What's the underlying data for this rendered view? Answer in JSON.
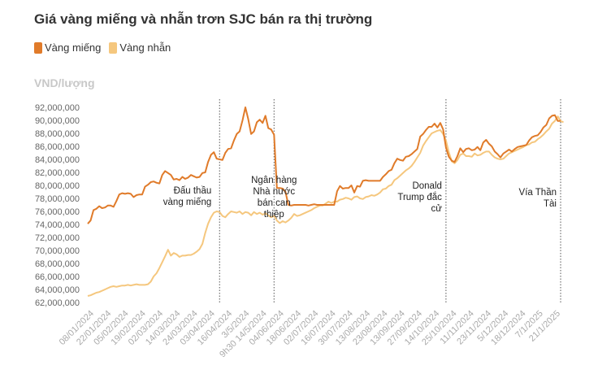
{
  "chart_data": {
    "type": "line",
    "title": "Giá vàng miếng và nhẫn trơn SJC bán ra thị trường",
    "ylabel": "VND/lượng",
    "xlabel": "",
    "ylim": [
      62000000,
      92000000
    ],
    "y_ticks": [
      "62,000,000",
      "64,000,000",
      "66,000,000",
      "68,000,000",
      "70,000,000",
      "72,000,000",
      "74,000,000",
      "76,000,000",
      "78,000,000",
      "80,000,000",
      "82,000,000",
      "84,000,000",
      "86,000,000",
      "88,000,000",
      "90,000,000",
      "92,000,000"
    ],
    "x_tick_labels": [
      "08/01/2024",
      "22/01/2024",
      "05/02/2024",
      "19/02/2024",
      "02/03/2024",
      "14/03/2024",
      "24/03/2024",
      "03/04/2024",
      "16/04/2024",
      "3/5/2024",
      "9h30 14/5/2024",
      "04/06/2024",
      "18/06/2024",
      "02/07/2024",
      "16/07/2024",
      "30/07/2024",
      "13/08/2024",
      "23/08/2024",
      "13/09/2024",
      "27/09/2024",
      "14/10/2024",
      "25/10/2024",
      "11/11/2024",
      "23/11/2024",
      "5/12/2024",
      "18/12/2024",
      "7/1/2025",
      "21/1/2025"
    ],
    "series": [
      {
        "name": "Vàng miếng",
        "color": "#e07b2a",
        "values": [
          74.1,
          74.6,
          76.2,
          76.4,
          76.8,
          76.5,
          76.6,
          76.9,
          76.9,
          76.7,
          77.6,
          78.6,
          78.8,
          78.7,
          78.8,
          78.7,
          78.2,
          78.5,
          78.6,
          78.6,
          79.8,
          80.1,
          80.5,
          80.6,
          80.4,
          80.3,
          81.6,
          82.2,
          81.9,
          81.6,
          80.9,
          81.0,
          80.8,
          81.3,
          81.0,
          81.2,
          81.6,
          81.4,
          81.2,
          81.3,
          81.9,
          82.0,
          83.6,
          84.7,
          85.1,
          84.1,
          84.0,
          83.9,
          85.0,
          85.6,
          85.7,
          86.9,
          87.9,
          88.3,
          90.0,
          92.0,
          90.2,
          87.9,
          88.3,
          89.7,
          90.1,
          89.6,
          90.7,
          88.8,
          88.6,
          87.8,
          79.6,
          79.6,
          79.5,
          79.0,
          77.0,
          76.9,
          77.0,
          77.0,
          77.0,
          77.0,
          77.0,
          76.9,
          77.0,
          77.1,
          77.0,
          77.0,
          77.0,
          77.0,
          77.0,
          77.0,
          77.0,
          79.1,
          79.9,
          79.5,
          79.6,
          79.6,
          80.0,
          78.9,
          79.9,
          79.8,
          80.7,
          80.8,
          80.7,
          80.7,
          80.7,
          80.7,
          80.7,
          81.3,
          81.7,
          82.2,
          82.4,
          83.4,
          84.1,
          83.9,
          83.8,
          84.4,
          84.5,
          84.8,
          85.2,
          85.6,
          87.5,
          87.9,
          88.5,
          89.0,
          89.0,
          89.5,
          88.9,
          89.6,
          88.6,
          85.8,
          84.4,
          83.8,
          83.6,
          84.5,
          85.7,
          85.1,
          85.6,
          85.7,
          85.4,
          85.5,
          85.9,
          85.4,
          86.6,
          87.0,
          86.4,
          86.0,
          85.2,
          84.8,
          84.3,
          84.9,
          85.2,
          85.5,
          85.2,
          85.6,
          85.9,
          86.0,
          86.1,
          86.2,
          86.9,
          87.4,
          87.6,
          87.7,
          88.2,
          88.9,
          89.3,
          90.3,
          90.7,
          90.8,
          89.9,
          89.9
        ]
      },
      {
        "name": "Vàng nhẫn",
        "color": "#f5c77e",
        "values": [
          63.0,
          63.1,
          63.3,
          63.5,
          63.6,
          63.8,
          64.0,
          64.2,
          64.4,
          64.5,
          64.4,
          64.5,
          64.6,
          64.6,
          64.7,
          64.6,
          64.7,
          64.8,
          64.7,
          64.7,
          64.7,
          64.8,
          65.2,
          66.0,
          66.5,
          67.3,
          68.2,
          69.1,
          70.1,
          69.2,
          69.6,
          69.4,
          69.0,
          69.2,
          69.2,
          69.3,
          69.3,
          69.5,
          69.8,
          70.2,
          71.0,
          72.7,
          74.1,
          75.1,
          75.8,
          76.0,
          75.9,
          75.3,
          75.1,
          75.6,
          76.0,
          75.9,
          75.8,
          76.0,
          75.6,
          75.9,
          75.8,
          75.4,
          75.9,
          75.6,
          75.8,
          75.5,
          75.7,
          75.4,
          75.1,
          75.3,
          74.6,
          74.2,
          74.5,
          74.3,
          74.6,
          75.0,
          75.6,
          75.3,
          75.4,
          75.6,
          75.8,
          76.0,
          76.2,
          76.5,
          76.7,
          76.9,
          76.9,
          77.2,
          77.5,
          77.3,
          77.5,
          77.5,
          77.8,
          77.9,
          78.1,
          78.0,
          77.8,
          78.2,
          78.3,
          78.0,
          77.9,
          78.2,
          78.3,
          78.5,
          78.4,
          78.6,
          78.9,
          79.4,
          79.5,
          79.9,
          80.1,
          80.8,
          81.1,
          81.5,
          81.9,
          82.3,
          82.6,
          83.0,
          83.6,
          84.3,
          85.0,
          86.1,
          86.8,
          87.4,
          88.0,
          88.2,
          88.4,
          88.5,
          87.9,
          86.9,
          85.1,
          83.7,
          83.4,
          83.9,
          84.7,
          84.9,
          84.5,
          84.5,
          84.4,
          84.9,
          84.6,
          84.7,
          85.0,
          85.2,
          85.2,
          84.7,
          84.3,
          84.1,
          84.0,
          84.1,
          84.5,
          84.9,
          85.1,
          85.3,
          85.5,
          85.7,
          85.9,
          86.2,
          86.3,
          86.6,
          86.7,
          87.1,
          87.4,
          87.8,
          88.3,
          88.7,
          89.5,
          89.9,
          90.6,
          89.9,
          89.7
        ]
      }
    ],
    "annotations": [
      {
        "at_index": 46,
        "lines": [
          "Đấu thầu",
          "vàng miếng"
        ]
      },
      {
        "at_index": 65,
        "lines": [
          "Ngân hàng",
          "Nhà nước",
          "bán can",
          "thiệp"
        ]
      },
      {
        "at_index": 125,
        "lines": [
          "Donald",
          "Trump đắc",
          "cử"
        ]
      },
      {
        "at_index": 165,
        "lines": [
          "Vía Thần",
          "Tài"
        ]
      }
    ],
    "vlines_at_index": [
      46,
      65,
      125,
      165
    ],
    "grid": false,
    "legend": "top-left"
  }
}
